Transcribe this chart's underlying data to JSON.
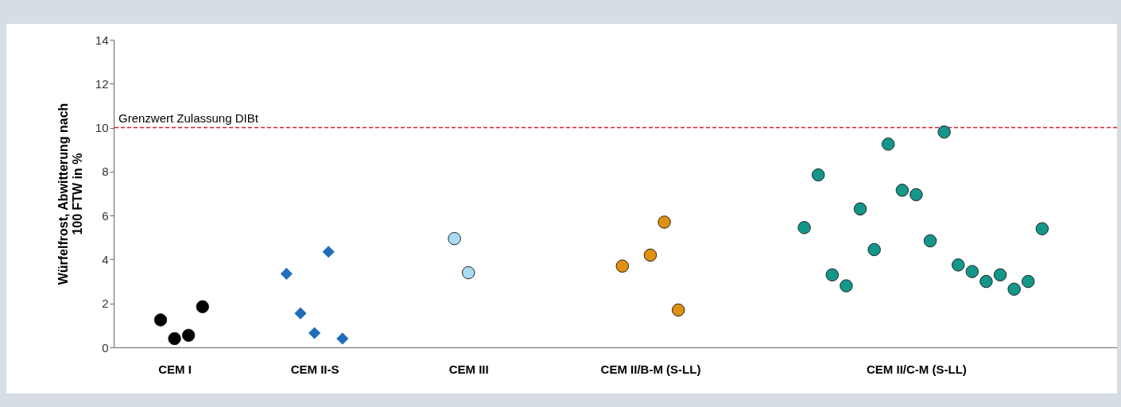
{
  "chart_data": {
    "type": "scatter",
    "ylabel": "Würfelfrost, Abwitterung nach\n100 FTW in %",
    "categories": [
      null,
      null,
      null,
      null,
      "CEM I",
      null,
      null,
      null,
      null,
      null,
      null,
      null,
      null,
      null,
      "CEM II-S",
      null,
      null,
      null,
      null,
      null,
      null,
      null,
      null,
      null,
      null,
      "CEM III",
      null,
      null,
      null,
      null,
      null,
      null,
      null,
      null,
      null,
      null,
      null,
      null,
      "CEM II/B-M (S-LL)",
      null,
      null,
      null,
      null,
      null,
      null,
      null,
      null,
      null,
      null,
      null,
      null,
      null,
      null,
      null,
      null,
      null,
      null,
      "CEM II/C-M (S-LL)",
      null,
      null,
      null,
      null,
      null,
      null,
      null,
      null,
      null,
      null,
      null,
      null,
      null,
      null
    ],
    "ylim": [
      0,
      14
    ],
    "yticks": [
      0,
      2,
      4,
      6,
      8,
      10,
      12,
      14
    ],
    "series": [
      {
        "color": "#000000",
        "marker": "circle",
        "values": [
          null,
          null,
          null,
          1.25,
          0.4,
          0.55,
          1.85,
          null,
          null,
          null,
          null,
          null,
          null,
          null,
          null,
          null,
          null,
          null,
          null,
          null,
          null,
          null,
          null,
          null,
          null,
          null,
          null,
          null,
          null,
          null,
          null,
          null,
          null,
          null,
          null,
          null,
          null,
          null,
          null,
          null,
          null,
          null,
          null,
          null,
          null,
          null,
          null,
          null,
          null,
          null,
          null,
          null,
          null,
          null,
          null,
          null,
          null,
          null,
          null,
          null,
          null,
          null,
          null,
          null,
          null,
          null,
          null,
          null,
          null,
          null,
          null,
          null
        ]
      },
      {
        "color": "#1f6fb8",
        "marker": "diamond",
        "values": [
          null,
          null,
          null,
          null,
          null,
          null,
          null,
          null,
          null,
          null,
          null,
          null,
          3.35,
          1.55,
          0.65,
          4.35,
          0.4,
          null,
          null,
          null,
          null,
          null,
          null,
          null,
          null,
          null,
          null,
          null,
          null,
          null,
          null,
          null,
          null,
          null,
          null,
          null,
          null,
          null,
          null,
          null,
          null,
          null,
          null,
          null,
          null,
          null,
          null,
          null,
          null,
          null,
          null,
          null,
          null,
          null,
          null,
          null,
          null,
          null,
          null,
          null,
          null,
          null,
          null,
          null,
          null,
          null,
          null,
          null,
          null,
          null,
          null,
          null
        ]
      },
      {
        "color": "#a8dcf4",
        "marker": "circle",
        "values": [
          null,
          null,
          null,
          null,
          null,
          null,
          null,
          null,
          null,
          null,
          null,
          null,
          null,
          null,
          null,
          null,
          null,
          null,
          null,
          null,
          null,
          null,
          null,
          null,
          4.95,
          3.4,
          null,
          null,
          null,
          null,
          null,
          null,
          null,
          null,
          null,
          null,
          null,
          null,
          null,
          null,
          null,
          null,
          null,
          null,
          null,
          null,
          null,
          null,
          null,
          null,
          null,
          null,
          null,
          null,
          null,
          null,
          null,
          null,
          null,
          null,
          null,
          null,
          null,
          null,
          null,
          null,
          null,
          null,
          null,
          null,
          null,
          null
        ]
      },
      {
        "color": "#e0900f",
        "marker": "circle",
        "values": [
          null,
          null,
          null,
          null,
          null,
          null,
          null,
          null,
          null,
          null,
          null,
          null,
          null,
          null,
          null,
          null,
          null,
          null,
          null,
          null,
          null,
          null,
          null,
          null,
          null,
          null,
          null,
          null,
          null,
          null,
          null,
          null,
          null,
          null,
          null,
          null,
          3.7,
          null,
          4.2,
          5.7,
          1.7,
          null,
          null,
          null,
          null,
          null,
          null,
          null,
          null,
          null,
          null,
          null,
          null,
          null,
          null,
          null,
          null,
          null,
          null,
          null,
          null,
          null,
          null,
          null,
          null,
          null,
          null,
          null,
          null,
          null,
          null,
          null
        ]
      },
      {
        "color": "#13978a",
        "marker": "circle",
        "values": [
          null,
          null,
          null,
          null,
          null,
          null,
          null,
          null,
          null,
          null,
          null,
          null,
          null,
          null,
          null,
          null,
          null,
          null,
          null,
          null,
          null,
          null,
          null,
          null,
          null,
          null,
          null,
          null,
          null,
          null,
          null,
          null,
          null,
          null,
          null,
          null,
          null,
          null,
          null,
          null,
          null,
          null,
          null,
          null,
          null,
          null,
          null,
          null,
          null,
          5.45,
          7.85,
          3.3,
          2.8,
          6.3,
          4.45,
          9.25,
          7.15,
          6.95,
          4.85,
          9.8,
          3.75,
          3.45,
          3.0,
          3.3,
          2.65,
          3.0,
          5.4,
          null,
          null,
          null,
          null,
          null
        ]
      }
    ],
    "ref_lines": [
      {
        "axis": "y",
        "value": 10,
        "label": "Grenzwert Zulassung DIBt",
        "color": "#d9202a",
        "line_style": "dashed"
      }
    ]
  }
}
